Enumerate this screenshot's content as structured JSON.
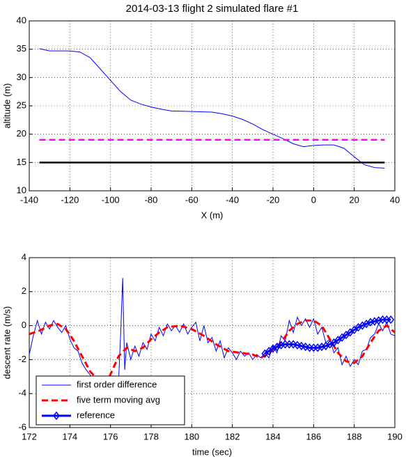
{
  "chart_data": [
    {
      "type": "line",
      "title": "2014-03-13 flight 2 simulated flare #1",
      "xlabel": "X (m)",
      "ylabel": "altitude (m)",
      "xlim": [
        -140,
        40
      ],
      "ylim": [
        10,
        40
      ],
      "xticks": [
        -140,
        -120,
        -100,
        -80,
        -60,
        -40,
        -20,
        0,
        20,
        40
      ],
      "yticks": [
        10,
        15,
        20,
        25,
        30,
        35,
        40
      ],
      "grid": true,
      "series": [
        {
          "color": "#0000ff",
          "linestyle": "solid",
          "linewidth": 1,
          "x": [
            -135,
            -130,
            -120,
            -115,
            -110,
            -105,
            -100,
            -95,
            -90,
            -85,
            -80,
            -75,
            -70,
            -60,
            -50,
            -45,
            -40,
            -35,
            -30,
            -25,
            -20,
            -15,
            -10,
            -5,
            0,
            5,
            10,
            15,
            20,
            25,
            30,
            35
          ],
          "values": [
            35.1,
            34.7,
            34.7,
            34.5,
            33.5,
            31.5,
            29.5,
            27.5,
            26,
            25.3,
            24.8,
            24.4,
            24.1,
            24,
            23.9,
            23.6,
            23.2,
            22.6,
            21.8,
            20.8,
            20,
            19.2,
            18.3,
            17.8,
            18,
            18.1,
            18.1,
            17.5,
            16,
            14.6,
            14.1,
            14
          ]
        },
        {
          "color": "#ff00ff",
          "linestyle": "dashed",
          "linewidth": 2.5,
          "x": [
            -135,
            35
          ],
          "values": [
            19,
            19
          ]
        },
        {
          "color": "#000000",
          "linestyle": "solid",
          "linewidth": 2.5,
          "x": [
            -135,
            35
          ],
          "values": [
            15,
            15
          ]
        }
      ]
    },
    {
      "type": "line",
      "xlabel": "time (sec)",
      "ylabel": "descent rate (m/s)",
      "xlim": [
        172,
        190
      ],
      "ylim": [
        -6,
        4
      ],
      "xticks": [
        172,
        174,
        176,
        178,
        180,
        182,
        184,
        186,
        188,
        190
      ],
      "yticks": [
        -6,
        -4,
        -2,
        0,
        2,
        4
      ],
      "grid": true,
      "legend": "lower left",
      "series": [
        {
          "name": "first order difference",
          "color": "#0000ff",
          "linestyle": "solid",
          "linewidth": 1,
          "x": [
            172.0,
            172.2,
            172.4,
            172.6,
            172.8,
            173.0,
            173.2,
            173.4,
            173.6,
            173.8,
            174.0,
            174.2,
            174.4,
            174.6,
            174.8,
            175.0,
            175.2,
            175.4,
            175.6,
            175.8,
            176.0,
            176.2,
            176.4,
            176.5,
            176.6,
            176.7,
            176.8,
            177.0,
            177.2,
            177.4,
            177.6,
            177.8,
            178.0,
            178.2,
            178.4,
            178.6,
            178.8,
            179.0,
            179.2,
            179.4,
            179.6,
            179.8,
            180.0,
            180.2,
            180.4,
            180.6,
            180.8,
            181.0,
            181.2,
            181.4,
            181.6,
            181.8,
            182.0,
            182.2,
            182.4,
            182.6,
            182.8,
            183.0,
            183.2,
            183.4,
            183.6,
            183.8,
            184.0,
            184.2,
            184.4,
            184.6,
            184.8,
            185.0,
            185.2,
            185.4,
            185.6,
            185.8,
            186.0,
            186.2,
            186.4,
            186.6,
            186.8,
            187.0,
            187.2,
            187.4,
            187.6,
            187.8,
            188.0,
            188.2,
            188.4,
            188.6,
            188.8,
            189.0,
            189.2,
            189.4,
            189.6,
            189.8,
            190.0
          ],
          "values": [
            -1.7,
            -0.6,
            0.3,
            -0.5,
            0.2,
            -0.2,
            0.3,
            -0.1,
            -0.4,
            0.0,
            -0.8,
            -1.3,
            -1.5,
            -2.2,
            -2.6,
            -2.9,
            -3.3,
            -3.0,
            -3.6,
            -3.2,
            -3.5,
            -3.0,
            -3.2,
            -0.5,
            2.8,
            -2.6,
            -1.0,
            -2.0,
            -1.2,
            -1.8,
            -1.0,
            -1.4,
            -0.5,
            -0.9,
            -0.1,
            -0.6,
            0.1,
            -0.3,
            0.0,
            -0.4,
            0.1,
            -0.5,
            -0.1,
            0.2,
            -0.9,
            0.0,
            -1.0,
            -0.7,
            -1.5,
            -0.9,
            -1.9,
            -1.3,
            -1.6,
            -2.0,
            -1.5,
            -1.8,
            -1.6,
            -2.0,
            -1.7,
            -1.9,
            -1.6,
            -1.9,
            -1.2,
            -1.6,
            -0.6,
            -0.9,
            0.3,
            -0.4,
            0.5,
            0.0,
            0.4,
            -0.1,
            0.4,
            -0.5,
            -0.1,
            -1.0,
            -0.8,
            -1.6,
            -1.3,
            -2.3,
            -1.8,
            -2.4,
            -2.0,
            -2.3,
            -1.5,
            -1.4,
            -0.7,
            -0.5,
            0.1,
            -0.3,
            0.2,
            -0.5,
            -0.6
          ]
        },
        {
          "name": "five term moving avg",
          "color": "#ff0000",
          "linestyle": "dashed",
          "linewidth": 3,
          "x": [
            172,
            172.5,
            173,
            173.4,
            173.8,
            174.2,
            174.6,
            175,
            175.4,
            175.8,
            176.4,
            176.8,
            177.2,
            177.6,
            178,
            178.4,
            178.8,
            179.4,
            180,
            180.6,
            181.2,
            181.8,
            182.4,
            183,
            183.4,
            183.8,
            184.4,
            184.8,
            185.2,
            185.6,
            186,
            186.4,
            186.8,
            187.2,
            187.6,
            188,
            188.4,
            188.8,
            189.2,
            189.6,
            190
          ],
          "values": [
            -0.5,
            -0.3,
            0,
            0.1,
            -0.2,
            -0.9,
            -1.8,
            -2.7,
            -3.2,
            -3.4,
            -1.8,
            -1.3,
            -1.5,
            -1.3,
            -0.8,
            -0.4,
            -0.1,
            0,
            -0.2,
            -0.6,
            -1.1,
            -1.5,
            -1.6,
            -1.7,
            -1.9,
            -1.6,
            -1.0,
            -0.3,
            0.1,
            0.3,
            0.3,
            0.0,
            -0.8,
            -1.6,
            -2.1,
            -2.2,
            -1.8,
            -1.0,
            -0.3,
            0.0,
            -0.4
          ]
        },
        {
          "name": "reference",
          "color": "#0000ff",
          "linestyle": "solid",
          "linewidth": 3,
          "marker": "diamond",
          "x": [
            183.6,
            183.8,
            184.0,
            184.2,
            184.4,
            184.6,
            184.8,
            185.0,
            185.2,
            185.4,
            185.6,
            185.8,
            186.0,
            186.2,
            186.4,
            186.6,
            186.8,
            187.0,
            187.2,
            187.4,
            187.6,
            187.8,
            188.0,
            188.2,
            188.4,
            188.6,
            188.8,
            189.0,
            189.2,
            189.4,
            189.6,
            189.8
          ],
          "values": [
            -1.65,
            -1.5,
            -1.35,
            -1.25,
            -1.15,
            -1.1,
            -1.1,
            -1.1,
            -1.15,
            -1.2,
            -1.25,
            -1.3,
            -1.3,
            -1.3,
            -1.25,
            -1.2,
            -1.1,
            -1.0,
            -0.85,
            -0.7,
            -0.55,
            -0.4,
            -0.25,
            -0.1,
            0.0,
            0.1,
            0.2,
            0.25,
            0.3,
            0.35,
            0.35,
            0.35
          ]
        }
      ]
    }
  ]
}
